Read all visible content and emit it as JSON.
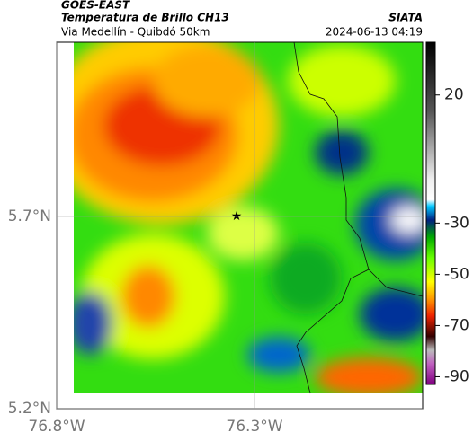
{
  "header": {
    "satellite": "GOES-EAST",
    "product": "Temperatura de Brillo CH13",
    "source": "SIATA",
    "region": "Via Medellín - Quibdó 50km",
    "datetime": "2024-06-13 04:19"
  },
  "map": {
    "lonlim": [
      -76.8,
      -75.875
    ],
    "latlim": [
      5.2,
      6.153
    ],
    "lonticks": [
      {
        "value": -76.8,
        "label": "76.8°W"
      },
      {
        "value": -76.3,
        "label": "76.3°W"
      }
    ],
    "latticks": [
      {
        "value": 5.7,
        "label": "5.7°N"
      },
      {
        "value": 5.2,
        "label": "5.2°N"
      }
    ]
  },
  "colorbar": {
    "lim": [
      -93,
      40.6
    ],
    "ticks": [
      20,
      -30,
      -50,
      -70,
      -90
    ]
  }
}
